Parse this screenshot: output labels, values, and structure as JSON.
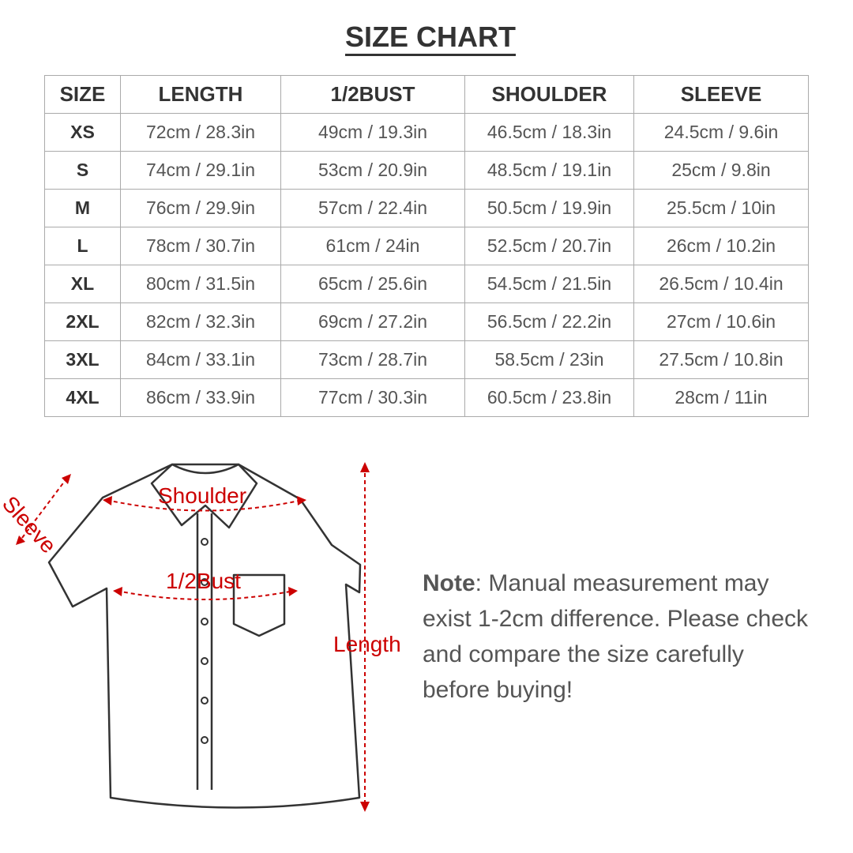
{
  "title": "SIZE CHART",
  "table": {
    "headers": [
      "SIZE",
      "LENGTH",
      "1/2BUST",
      "SHOULDER",
      "SLEEVE"
    ],
    "rows": [
      [
        "XS",
        "72cm / 28.3in",
        "49cm / 19.3in",
        "46.5cm / 18.3in",
        "24.5cm / 9.6in"
      ],
      [
        "S",
        "74cm / 29.1in",
        "53cm / 20.9in",
        "48.5cm / 19.1in",
        "25cm / 9.8in"
      ],
      [
        "M",
        "76cm / 29.9in",
        "57cm / 22.4in",
        "50.5cm / 19.9in",
        "25.5cm / 10in"
      ],
      [
        "L",
        "78cm / 30.7in",
        "61cm / 24in",
        "52.5cm / 20.7in",
        "26cm / 10.2in"
      ],
      [
        "XL",
        "80cm / 31.5in",
        "65cm / 25.6in",
        "54.5cm / 21.5in",
        "26.5cm / 10.4in"
      ],
      [
        "2XL",
        "82cm / 32.3in",
        "69cm / 27.2in",
        "56.5cm / 22.2in",
        "27cm / 10.6in"
      ],
      [
        "3XL",
        "84cm / 33.1in",
        "73cm / 28.7in",
        "58.5cm / 23in",
        "27.5cm / 10.8in"
      ],
      [
        "4XL",
        "86cm / 33.9in",
        "77cm / 30.3in",
        "60.5cm / 23.8in",
        "28cm / 11in"
      ]
    ]
  },
  "diagram": {
    "sleeve": "Sleeve",
    "shoulder": "Shoulder",
    "bust": "1/2Bust",
    "length": "Length",
    "accent": "#cc0000"
  },
  "note": {
    "label": "Note",
    "text": ": Manual measurement may exist 1-2cm difference. Please check and compare the size carefully before buying!"
  }
}
